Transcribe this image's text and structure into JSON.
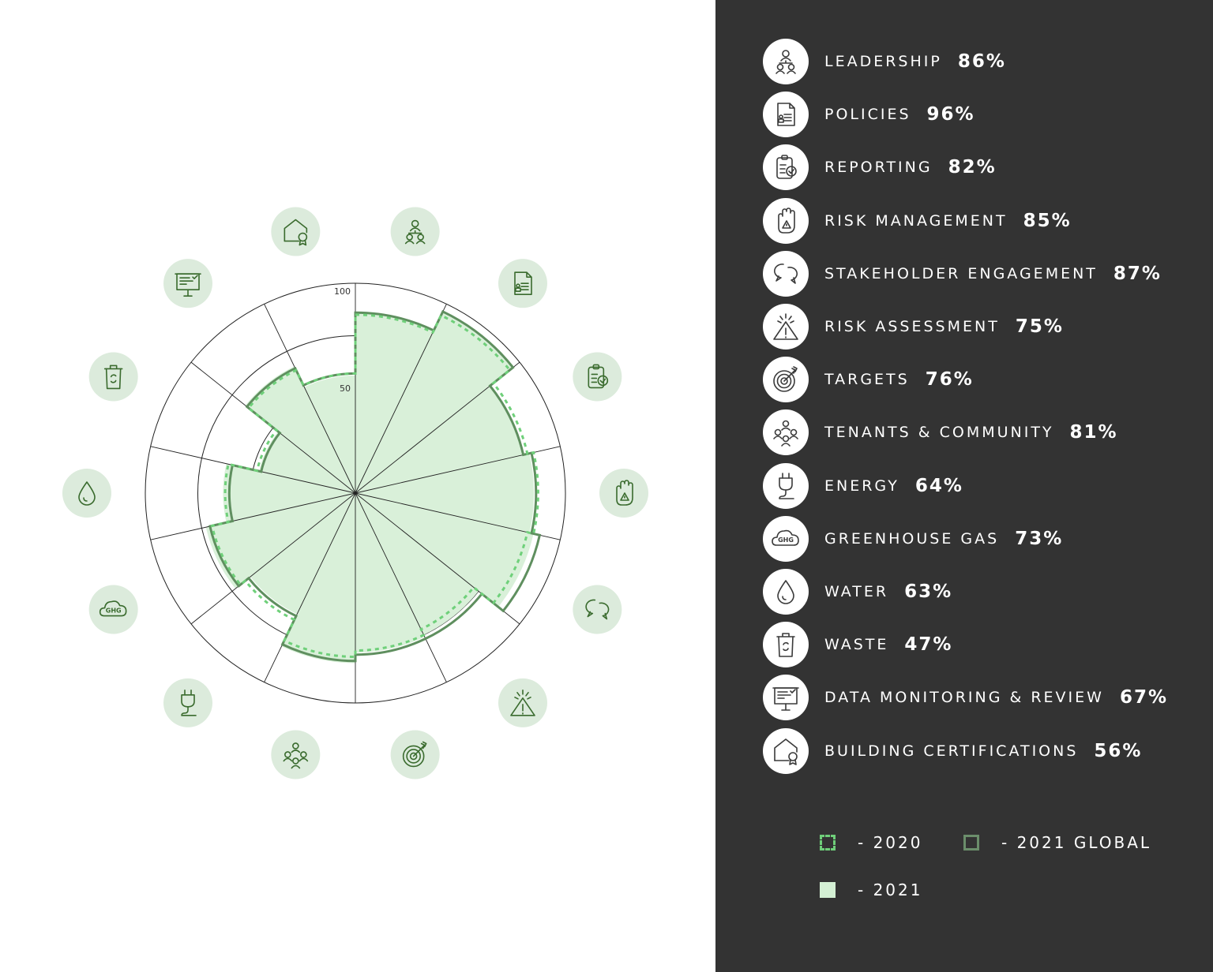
{
  "chart_data": {
    "type": "polar-area",
    "radial_ticks": [
      "50",
      "100"
    ],
    "rlim": [
      0,
      100
    ],
    "categories": [
      {
        "label": "LEADERSHIP",
        "value_text": "86%",
        "icon": "leadership-icon",
        "v2021": 86,
        "v2020": 85,
        "vglobal": 86
      },
      {
        "label": "POLICIES",
        "value_text": "96%",
        "icon": "policies-icon",
        "v2021": 96,
        "v2020": 94,
        "vglobal": 96
      },
      {
        "label": "REPORTING",
        "value_text": "82%",
        "icon": "reporting-icon",
        "v2021": 82,
        "v2020": 84,
        "vglobal": 82
      },
      {
        "label": "RISK MANAGEMENT",
        "value_text": "85%",
        "icon": "risk-management-icon",
        "v2021": 85,
        "v2020": 87,
        "vglobal": 86
      },
      {
        "label": "STAKEHOLDER ENGAGEMENT",
        "value_text": "87%",
        "icon": "stakeholder-engagement-icon",
        "v2021": 87,
        "v2020": 84,
        "vglobal": 90
      },
      {
        "label": "RISK ASSESSMENT",
        "value_text": "75%",
        "icon": "risk-assessment-icon",
        "v2021": 75,
        "v2020": 72,
        "vglobal": 77
      },
      {
        "label": "TARGETS",
        "value_text": "76%",
        "icon": "targets-icon",
        "v2021": 76,
        "v2020": 75,
        "vglobal": 77
      },
      {
        "label": "TENANTS & COMMUNITY",
        "value_text": "81%",
        "icon": "tenants-community-icon",
        "v2021": 81,
        "v2020": 78,
        "vglobal": 80
      },
      {
        "label": "ENERGY",
        "value_text": "64%",
        "icon": "energy-icon",
        "v2021": 64,
        "v2020": 67,
        "vglobal": 65
      },
      {
        "label": "GREENHOUSE GAS",
        "value_text": "73%",
        "icon": "greenhouse-gas-icon",
        "v2021": 73,
        "v2020": 70,
        "vglobal": 71
      },
      {
        "label": "WATER",
        "value_text": "63%",
        "icon": "water-icon",
        "v2021": 63,
        "v2020": 62,
        "vglobal": 60
      },
      {
        "label": "WASTE",
        "value_text": "47%",
        "icon": "waste-icon",
        "v2021": 47,
        "v2020": 48,
        "vglobal": 46
      },
      {
        "label": "DATA MONITORING & REVIEW",
        "value_text": "67%",
        "icon": "data-monitoring-icon",
        "v2021": 67,
        "v2020": 65,
        "vglobal": 66
      },
      {
        "label": "BUILDING CERTIFICATIONS",
        "value_text": "56%",
        "icon": "building-certifications-icon",
        "v2021": 56,
        "v2020": 57,
        "vglobal": 57
      }
    ],
    "series": [
      {
        "name": "2021",
        "key": "v2021"
      },
      {
        "name": "2020",
        "key": "v2020"
      },
      {
        "name": "2021 GLOBAL",
        "key": "vglobal"
      }
    ],
    "legend": [
      {
        "label": "- 2020",
        "style": "dashed",
        "color": "#6fcf7a"
      },
      {
        "label": "- 2021 GLOBAL",
        "style": "outline",
        "color": "#6b8e6b"
      },
      {
        "label": "- 2021",
        "style": "filled",
        "color": "#d4f0d4"
      }
    ],
    "legend_position": "bottom-right"
  },
  "colors": {
    "fill_2021": "#d9f0d9",
    "line_global": "#5f8f5f",
    "line_2020": "#6fd07a",
    "icon_bg": "#dcebdc",
    "icon_stroke": "#3a6b2e",
    "panel_bg": "#333333"
  }
}
